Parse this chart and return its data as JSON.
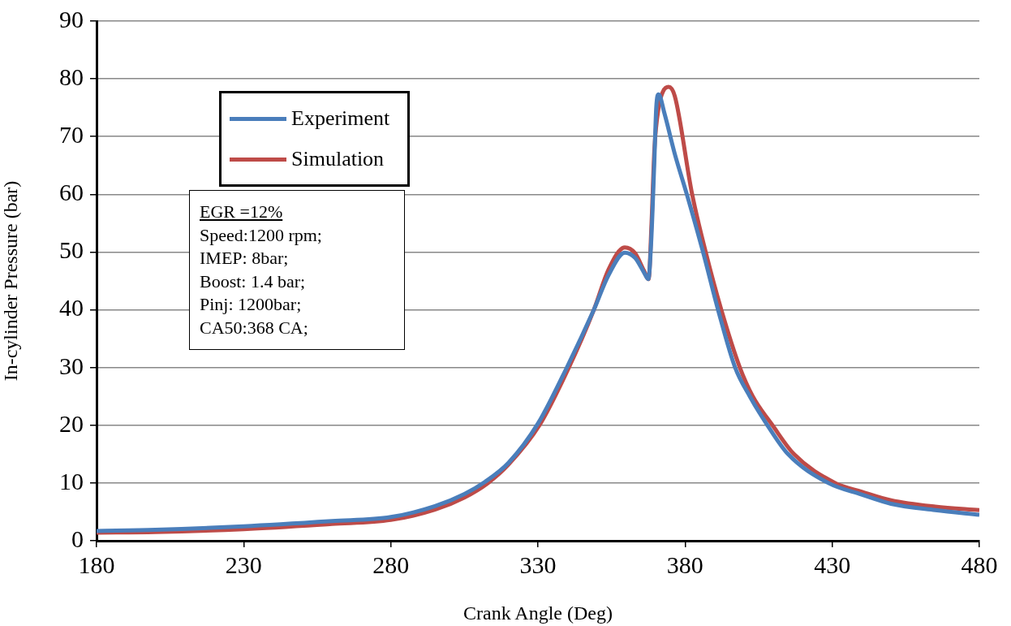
{
  "chart_data": {
    "type": "line",
    "xlabel": "Crank Angle (Deg)",
    "ylabel": "In-cylinder Pressure (bar)",
    "xlim": [
      180,
      480
    ],
    "xticks": [
      180,
      230,
      280,
      330,
      380,
      430,
      480
    ],
    "ylim": [
      0,
      90
    ],
    "yticks": [
      0,
      10,
      20,
      30,
      40,
      50,
      60,
      70,
      80,
      90
    ],
    "grid": "y",
    "legend": "top left",
    "marker": "none",
    "line_style": "solid",
    "annotations": [
      "EGR =12%",
      "Speed:1200 rpm;",
      "IMEP: 8bar;",
      "Boost: 1.4 bar;",
      "Pinj: 1200bar;",
      "CA50:368 CA;"
    ],
    "series": [
      {
        "name": "Experiment",
        "color": "#4a7ebb",
        "x": [
          180,
          200,
          230,
          260,
          280,
          295,
          305,
          312,
          320,
          330,
          340,
          349,
          354,
          359.5,
          363,
          366,
          367.5,
          368.5,
          369.5,
          370.2,
          371,
          373,
          376.5,
          380.6,
          386.1,
          391.2,
          397,
          402,
          408,
          415,
          428.7,
          440,
          450,
          465,
          480
        ],
        "values": [
          1.7,
          1.9,
          2.5,
          3.4,
          4.1,
          6.0,
          8.1,
          10.2,
          13.5,
          20.3,
          30.2,
          40,
          46,
          49.9,
          49,
          46.5,
          45.3,
          52,
          65,
          75,
          77.3,
          74,
          67,
          60,
          50,
          40,
          30,
          25,
          20,
          15,
          10,
          8,
          6.4,
          5.3,
          4.5
        ]
      },
      {
        "name": "Simulation",
        "color": "#be4b48",
        "x": [
          180,
          200,
          230,
          260,
          280,
          295,
          305,
          313,
          320,
          330.5,
          340.5,
          349,
          354,
          359.5,
          363,
          366,
          367.6,
          368.6,
          369.6,
          371,
          372.5,
          374.4,
          376.5,
          382.4,
          387,
          392.3,
          398.6,
          403,
          409.7,
          417,
          431,
          440,
          450,
          465,
          480
        ],
        "values": [
          1.4,
          1.5,
          2.0,
          2.9,
          3.6,
          5.4,
          7.5,
          10,
          13.2,
          20,
          30,
          40,
          47,
          50.8,
          49.8,
          46.8,
          45.3,
          55,
          68,
          75,
          77.8,
          78.6,
          77,
          60,
          50,
          40,
          30,
          25,
          20,
          15,
          10,
          8.5,
          7.0,
          5.9,
          5.3
        ]
      }
    ]
  }
}
